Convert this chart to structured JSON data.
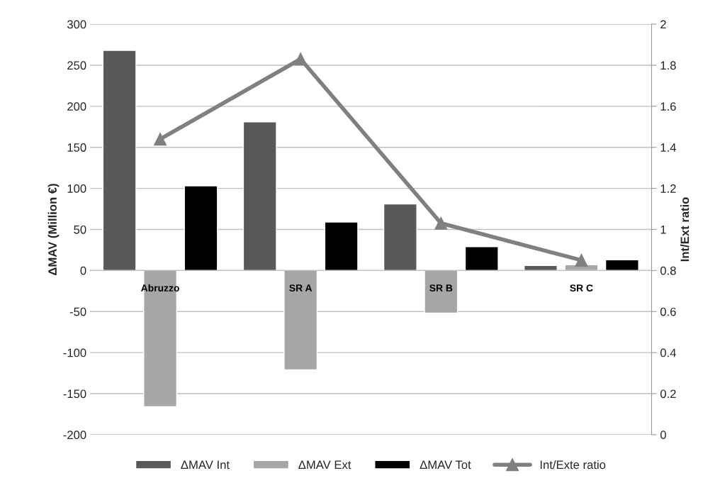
{
  "chart_data": {
    "type": "bar",
    "categories": [
      "Abruzzo",
      "SR A",
      "SR B",
      "SR C"
    ],
    "ylabel": "ΔMAV (Million €)",
    "y2label": "Int/Ext ratio",
    "ylim": [
      -200,
      300
    ],
    "yticks": [
      -200,
      -150,
      -100,
      -50,
      0,
      50,
      100,
      150,
      200,
      250,
      300
    ],
    "y2lim": [
      0,
      2
    ],
    "y2ticks": [
      0,
      0.2,
      0.4,
      0.6,
      0.8,
      1,
      1.2,
      1.4,
      1.6,
      1.8,
      2
    ],
    "grid": "y",
    "legend": "bottom",
    "series": [
      {
        "name": "ΔMAV Int",
        "color": "#595959",
        "values": [
          268,
          181,
          81,
          6
        ]
      },
      {
        "name": "ΔMAV Ext",
        "color": "#a6a6a6",
        "values": [
          -166,
          -121,
          -52,
          7
        ]
      },
      {
        "name": "ΔMAV Tot",
        "color": "#000000",
        "values": [
          103,
          59,
          29,
          13
        ]
      },
      {
        "name": "Int/Exte ratio",
        "type": "line",
        "axis": "y2",
        "color": "#808080",
        "marker": "triangle",
        "line_style": "solid",
        "values": [
          1.44,
          1.83,
          1.03,
          0.85
        ]
      }
    ]
  }
}
